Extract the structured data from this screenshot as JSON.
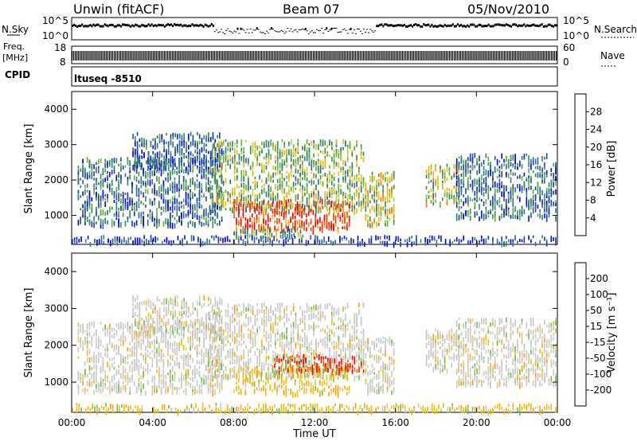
{
  "header": {
    "station": "Unwin (fitACF)",
    "beam": "Beam 07",
    "date": "05/Nov/2010"
  },
  "strip_panels": {
    "nsky": {
      "label": "N.Sky",
      "right_label": "N.Search",
      "ticks_left": [
        "10^5",
        "10^0"
      ],
      "ticks_right": [
        "10^5",
        "10^0"
      ]
    },
    "freq": {
      "label_line1": "Freq.",
      "label_line2": "[MHz]",
      "ticks_left": [
        "18",
        "8"
      ],
      "ticks_right": [
        "60",
        "0"
      ],
      "right_label": "Nave"
    },
    "cpid": {
      "label": "CPID",
      "text": "ltuseq -8510"
    }
  },
  "chart_data": [
    {
      "type": "heatmap",
      "name": "power",
      "ylabel": "Slant Range [km]",
      "ylim": [
        180,
        4500
      ],
      "yticks": [
        1000,
        2000,
        3000,
        4000
      ],
      "xlim": [
        0,
        24
      ],
      "x_hours": [
        0,
        4,
        8,
        12,
        16,
        20,
        24
      ],
      "colorbar": {
        "label": "Power [dB]",
        "ticks": [
          "28",
          "24",
          "20",
          "16",
          "12",
          "8",
          "4"
        ],
        "colors": [
          "#0000ff",
          "#1f3fa0",
          "#2a6a9a",
          "#2e8c5a",
          "#5fae3c",
          "#c8c81e",
          "#ffb000",
          "#ff7a00",
          "#ff3c00",
          "#ff0000"
        ]
      },
      "regions": [
        {
          "x0": 0.3,
          "x1": 7.5,
          "y0": 700,
          "y1": 2600,
          "level": 0.25
        },
        {
          "x0": 3.0,
          "x1": 7.5,
          "y0": 2300,
          "y1": 3300,
          "level": 0.2
        },
        {
          "x0": 6.8,
          "x1": 14.5,
          "y0": 1100,
          "y1": 3100,
          "level": 0.45
        },
        {
          "x0": 8.0,
          "x1": 13.8,
          "y0": 550,
          "y1": 1400,
          "level": 0.9
        },
        {
          "x0": 8.0,
          "x1": 11.5,
          "y0": 350,
          "y1": 650,
          "level": 0.4
        },
        {
          "x0": 14.5,
          "x1": 16.0,
          "y0": 700,
          "y1": 2200,
          "level": 0.55
        },
        {
          "x0": 17.5,
          "x1": 19.2,
          "y0": 1300,
          "y1": 2400,
          "level": 0.5
        },
        {
          "x0": 19.0,
          "x1": 24.0,
          "y0": 900,
          "y1": 2700,
          "level": 0.25
        },
        {
          "x0": 0.0,
          "x1": 24.0,
          "y0": 180,
          "y1": 380,
          "level": 0.15
        }
      ]
    },
    {
      "type": "heatmap",
      "name": "velocity",
      "ylabel": "Slant Range [km]",
      "ylim": [
        180,
        4500
      ],
      "yticks": [
        1000,
        2000,
        3000,
        4000
      ],
      "xlim": [
        0,
        24
      ],
      "x_hours": [
        0,
        4,
        8,
        12,
        16,
        20,
        24
      ],
      "xlabel": "Time UT",
      "xtick_labels": [
        "00:00",
        "04:00",
        "08:00",
        "12:00",
        "16:00",
        "20:00",
        "00:00"
      ],
      "colorbar": {
        "label": "Velocity [m s⁻¹]",
        "ticks": [
          "200",
          "100",
          "50",
          "15",
          "-15",
          "-50",
          "-100",
          "-200"
        ],
        "colors": [
          "#2030b0",
          "#3a6ac8",
          "#1e8c3c",
          "#6cc040",
          "#c8c8c8",
          "#c8c8c8",
          "#f0c000",
          "#ffa000",
          "#ff6000",
          "#ff0000"
        ]
      },
      "regions": [
        {
          "x0": 0.3,
          "x1": 7.5,
          "y0": 700,
          "y1": 2600,
          "level": "gray"
        },
        {
          "x0": 3.0,
          "x1": 7.5,
          "y0": 2300,
          "y1": 3300,
          "level": "gray"
        },
        {
          "x0": 6.8,
          "x1": 14.5,
          "y0": 1100,
          "y1": 3100,
          "level": "gray"
        },
        {
          "x0": 8.0,
          "x1": 13.8,
          "y0": 650,
          "y1": 1400,
          "level": "orange"
        },
        {
          "x0": 10.0,
          "x1": 14.5,
          "y0": 1250,
          "y1": 1700,
          "level": "red"
        },
        {
          "x0": 14.5,
          "x1": 16.0,
          "y0": 700,
          "y1": 2200,
          "level": "gray"
        },
        {
          "x0": 17.5,
          "x1": 19.2,
          "y0": 1300,
          "y1": 2400,
          "level": "gray"
        },
        {
          "x0": 19.0,
          "x1": 24.0,
          "y0": 900,
          "y1": 2700,
          "level": "gray"
        },
        {
          "x0": 0.0,
          "x1": 24.0,
          "y0": 180,
          "y1": 380,
          "level": "orange"
        }
      ]
    }
  ]
}
